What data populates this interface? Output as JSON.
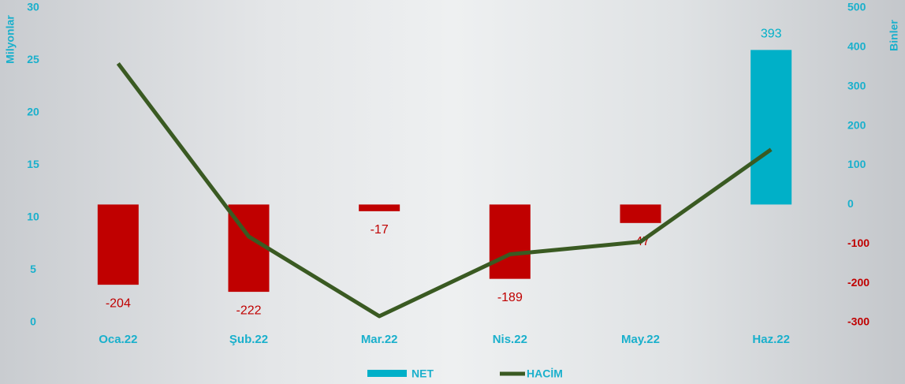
{
  "chart_data": {
    "type": "bar_line",
    "categories": [
      "Oca.22",
      "Şub.22",
      "Mar.22",
      "Nis.22",
      "May.22",
      "Haz.22"
    ],
    "series": [
      {
        "name": "NET",
        "type": "bar",
        "axis": "y2",
        "color": "#00b0c8",
        "negative_color": "#c00000",
        "values": [
          -204,
          -222,
          -17,
          -189,
          -47,
          393
        ]
      },
      {
        "name": "HACİM",
        "type": "line",
        "color": "#3a5a22",
        "values": [
          24.7,
          8.2,
          0.6,
          6.5,
          7.7,
          16.5
        ]
      }
    ],
    "ylabel": "Milyonlar",
    "y2label": "Binler",
    "ylim": [
      0,
      30
    ],
    "yticks": [
      0,
      5,
      10,
      15,
      20,
      25,
      30
    ],
    "y2lim": [
      -300,
      500
    ],
    "y2ticks": [
      -300,
      -200,
      -100,
      0,
      100,
      200,
      300,
      400,
      500
    ]
  }
}
